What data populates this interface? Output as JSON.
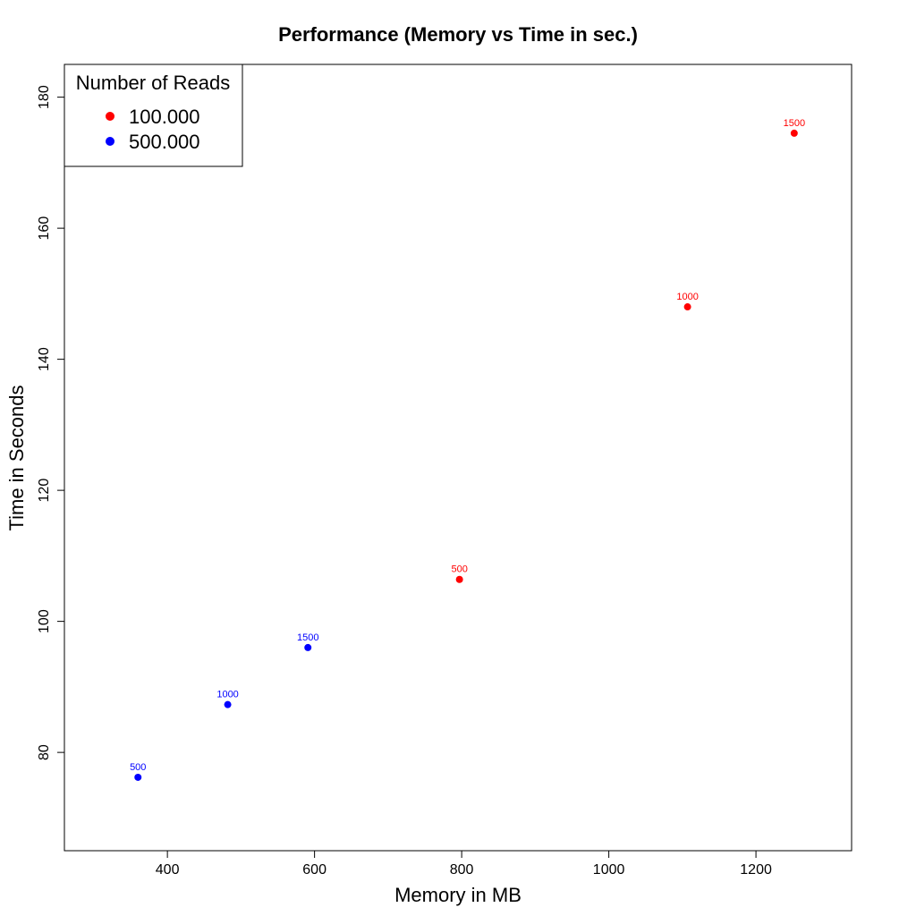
{
  "chart_data": {
    "type": "scatter",
    "title": "Performance (Memory vs Time in sec.)",
    "xlabel": "Memory in MB",
    "ylabel": "Time in Seconds",
    "xlim": [
      260,
      1330
    ],
    "ylim": [
      65,
      185
    ],
    "xticks": [
      400,
      600,
      800,
      1000,
      1200
    ],
    "yticks": [
      80,
      100,
      120,
      140,
      160,
      180
    ],
    "grid": false,
    "legend": {
      "title": "Number of Reads",
      "position": "top-left",
      "entries": [
        {
          "label": "100.000",
          "color": "#ff0000"
        },
        {
          "label": "500.000",
          "color": "#0000ff"
        }
      ]
    },
    "series": [
      {
        "name": "100.000",
        "color": "#ff0000",
        "points": [
          {
            "x": 797,
            "y": 106.4,
            "label": "500"
          },
          {
            "x": 1107,
            "y": 148.0,
            "label": "1000"
          },
          {
            "x": 1252,
            "y": 174.5,
            "label": "1500"
          }
        ]
      },
      {
        "name": "500.000",
        "color": "#0000ff",
        "points": [
          {
            "x": 360,
            "y": 76.2,
            "label": "500"
          },
          {
            "x": 482,
            "y": 87.3,
            "label": "1000"
          },
          {
            "x": 591,
            "y": 96.0,
            "label": "1500"
          }
        ]
      }
    ]
  }
}
